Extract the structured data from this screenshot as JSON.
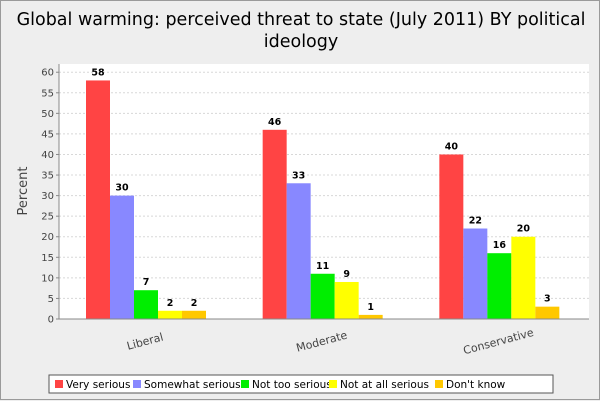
{
  "chart_data": {
    "type": "bar",
    "title": "Global warming: perceived threat to state (July 2011) BY political ideology",
    "title_lines": [
      "Global warming: perceived threat to state (July 2011) BY political",
      "ideology"
    ],
    "xlabel": "",
    "ylabel": "Percent",
    "ylim": [
      0,
      62
    ],
    "yticks": [
      0,
      5,
      10,
      15,
      20,
      25,
      30,
      35,
      40,
      45,
      50,
      55,
      60
    ],
    "grid": true,
    "legend_position": "bottom",
    "categories": [
      "Liberal",
      "Moderate",
      "Conservative"
    ],
    "series": [
      {
        "name": "Very serious",
        "color": "#ff4444",
        "values": [
          58,
          46,
          40
        ]
      },
      {
        "name": "Somewhat serious",
        "color": "#8888ff",
        "values": [
          30,
          33,
          22
        ]
      },
      {
        "name": "Not too serious",
        "color": "#00ee00",
        "values": [
          7,
          11,
          16
        ]
      },
      {
        "name": "Not at all serious",
        "color": "#ffff00",
        "values": [
          2,
          9,
          20
        ]
      },
      {
        "name": "Don't know",
        "color": "#ffc800",
        "values": [
          2,
          1,
          3
        ]
      }
    ],
    "bar_labels": [
      [
        "58",
        "46",
        "40"
      ],
      [
        "30",
        "33",
        "22"
      ],
      [
        "7",
        "11",
        "16"
      ],
      [
        "2",
        "9",
        "20"
      ],
      [
        "2",
        "1",
        "3"
      ]
    ]
  }
}
